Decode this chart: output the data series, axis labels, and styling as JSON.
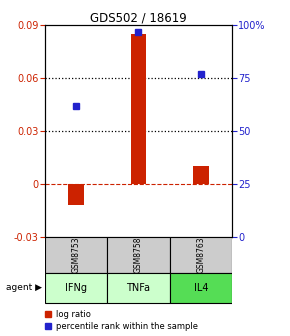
{
  "title": "GDS502 / 18619",
  "samples": [
    "GSM8753",
    "GSM8758",
    "GSM8763"
  ],
  "agents": [
    "IFNg",
    "TNFa",
    "IL4"
  ],
  "log_ratios": [
    -0.012,
    0.085,
    0.01
  ],
  "percentile_ranks": [
    0.62,
    0.97,
    0.77
  ],
  "ylim_left": [
    -0.03,
    0.09
  ],
  "ylim_right": [
    0.0,
    1.0
  ],
  "yticks_left": [
    -0.03,
    0.0,
    0.03,
    0.06,
    0.09
  ],
  "yticks_right": [
    0.0,
    0.25,
    0.5,
    0.75,
    1.0
  ],
  "ytick_labels_left": [
    "-0.03",
    "0",
    "0.03",
    "0.06",
    "0.09"
  ],
  "ytick_labels_right": [
    "0",
    "25",
    "50",
    "75",
    "100%"
  ],
  "dotted_lines": [
    0.03,
    0.06
  ],
  "bar_color": "#cc2200",
  "marker_color": "#2222cc",
  "sample_bg_color": "#cccccc",
  "agent_bg_colors": [
    "#ccffcc",
    "#ccffcc",
    "#55dd55"
  ],
  "bar_width": 0.25,
  "marker_size": 5
}
